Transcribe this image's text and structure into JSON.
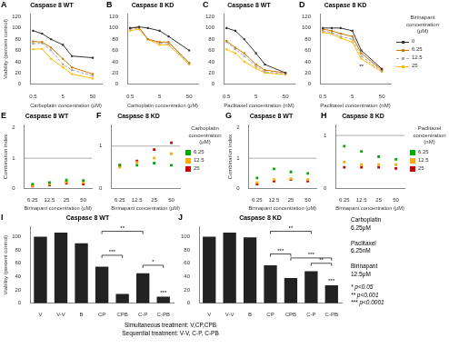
{
  "chart_data": [
    {
      "type": "line",
      "panel_label": "A",
      "title": "Caspase 8 WT",
      "xlabel": "Carboplatin concentration (μM)",
      "ylabel": "Viability (percent control)",
      "log": "x",
      "grid": false,
      "xlim": [
        0.4,
        100
      ],
      "xticks": [
        0.5,
        5,
        50
      ],
      "ylim": [
        0,
        125
      ],
      "yticks": [
        0,
        20,
        40,
        60,
        80,
        100,
        120
      ],
      "x": [
        0.5,
        1,
        2,
        5,
        10,
        50
      ],
      "series": [
        {
          "name": "0",
          "color": "#333333",
          "line_style": "solid",
          "marker": "square",
          "values": [
            95,
            90,
            80,
            70,
            50,
            47
          ]
        },
        {
          "name": "6.25",
          "color": "#cc7700",
          "line_style": "solid",
          "marker": "square",
          "values": [
            76,
            75,
            65,
            45,
            30,
            18
          ]
        },
        {
          "name": "12.5",
          "color": "#aaaaaa",
          "line_style": "dashed",
          "marker": "square",
          "values": [
            72,
            73,
            60,
            35,
            25,
            15
          ]
        },
        {
          "name": "25",
          "color": "#ffbb00",
          "line_style": "solid",
          "marker": "square",
          "values": [
            62,
            63,
            45,
            30,
            18,
            10
          ]
        }
      ]
    },
    {
      "type": "line",
      "panel_label": "B",
      "title": "Caspase 8 KD",
      "xlabel": "Carboplatin concentration (μM)",
      "log": "x",
      "grid": false,
      "xlim": [
        0.4,
        100
      ],
      "xticks": [
        0.5,
        5,
        50
      ],
      "ylim": [
        0,
        125
      ],
      "yticks": [
        0,
        20,
        40,
        60,
        80,
        100,
        120
      ],
      "x": [
        0.5,
        1,
        2,
        5,
        10,
        50
      ],
      "series": [
        {
          "name": "0",
          "color": "#333333",
          "line_style": "solid",
          "marker": "square",
          "values": [
            100,
            102,
            100,
            95,
            85,
            60
          ]
        },
        {
          "name": "6.25",
          "color": "#cc7700",
          "line_style": "solid",
          "marker": "square",
          "values": [
            100,
            101,
            80,
            75,
            75,
            38
          ]
        },
        {
          "name": "12.5",
          "color": "#aaaaaa",
          "line_style": "dashed",
          "marker": "square",
          "values": [
            98,
            100,
            80,
            73,
            72,
            37
          ]
        },
        {
          "name": "25",
          "color": "#ffbb00",
          "line_style": "solid",
          "marker": "square",
          "values": [
            95,
            98,
            80,
            70,
            70,
            35
          ]
        }
      ]
    },
    {
      "type": "line",
      "panel_label": "C",
      "title": "Caspase 8 WT",
      "xlabel": "Paclitaxel concentration (nM)",
      "log": "x",
      "grid": false,
      "xlim": [
        0.4,
        100
      ],
      "xticks": [
        0.5,
        5,
        50
      ],
      "ylim": [
        0,
        125
      ],
      "yticks": [
        0,
        20,
        40,
        60,
        80,
        100,
        120
      ],
      "x": [
        0.5,
        1,
        2,
        5,
        10,
        50
      ],
      "series": [
        {
          "name": "0",
          "color": "#333333",
          "line_style": "solid",
          "marker": "square",
          "values": [
            100,
            95,
            80,
            55,
            35,
            20
          ]
        },
        {
          "name": "6.25",
          "color": "#cc7700",
          "line_style": "solid",
          "marker": "square",
          "values": [
            77,
            65,
            55,
            35,
            25,
            20
          ]
        },
        {
          "name": "12.5",
          "color": "#aaaaaa",
          "line_style": "dashed",
          "marker": "square",
          "values": [
            75,
            62,
            50,
            32,
            22,
            18
          ]
        },
        {
          "name": "25",
          "color": "#ffbb00",
          "line_style": "solid",
          "marker": "square",
          "values": [
            62,
            55,
            40,
            28,
            20,
            17
          ]
        }
      ]
    },
    {
      "type": "line",
      "panel_label": "D",
      "title": "Caspase 8 KD",
      "xlabel": "Paclitaxel concentration (nM)",
      "log": "x",
      "grid": false,
      "legend": "right",
      "legend_title": "Birinapant\nconcentration\n(μM)",
      "xlim": [
        0.4,
        100
      ],
      "xticks": [
        0.5,
        5,
        50
      ],
      "ylim": [
        0,
        125
      ],
      "yticks": [
        0,
        20,
        40,
        60,
        80,
        100,
        120
      ],
      "x": [
        0.5,
        1,
        2,
        5,
        10,
        50
      ],
      "series": [
        {
          "name": "0",
          "color": "#333333",
          "line_style": "solid",
          "marker": "square",
          "values": [
            100,
            100,
            100,
            95,
            60,
            27
          ]
        },
        {
          "name": "6.25",
          "color": "#cc7700",
          "line_style": "solid",
          "marker": "square",
          "values": [
            98,
            95,
            90,
            85,
            55,
            25
          ]
        },
        {
          "name": "12.5",
          "color": "#aaaaaa",
          "line_style": "dashed",
          "marker": "square",
          "values": [
            95,
            92,
            85,
            80,
            50,
            23
          ]
        },
        {
          "name": "25",
          "color": "#ffbb00",
          "line_style": "solid",
          "marker": "square",
          "values": [
            92,
            90,
            82,
            75,
            45,
            22
          ]
        }
      ],
      "annotations": [
        {
          "text": "**",
          "x": 10,
          "y": 25
        }
      ]
    },
    {
      "type": "scatter",
      "panel_label": "E",
      "title": "Caspase 8 WT",
      "xlabel": "Birinapant concentration (μM)",
      "ylabel": "Combination index",
      "grid": false,
      "categories": [
        "6.25",
        "12.5",
        "25",
        "50"
      ],
      "ylim": [
        0,
        2.1
      ],
      "yticks": [
        0,
        1,
        2
      ],
      "reference_y": 1.0,
      "series": [
        {
          "name": "6.25",
          "color": "#00aa00",
          "marker": "square",
          "values": [
            0.15,
            0.2,
            0.28,
            0.27
          ]
        },
        {
          "name": "12.5",
          "color": "#ffaa00",
          "marker": "square",
          "values": [
            0.1,
            0.15,
            0.22,
            0.2
          ]
        },
        {
          "name": "25",
          "color": "#cc0000",
          "marker": "square",
          "values": [
            0.08,
            0.12,
            0.18,
            0.15
          ]
        }
      ]
    },
    {
      "type": "scatter",
      "panel_label": "F",
      "title": "Caspase 8 KD",
      "xlabel": "Birinapant concentration (μM)",
      "grid": false,
      "legend": "right",
      "legend_title": "Carboplatin\nconcentration\n(μM)",
      "categories": [
        "6.25",
        "12.5",
        "25",
        "50"
      ],
      "ylim": [
        0,
        1.5
      ],
      "yticks": [
        0,
        1
      ],
      "reference_y": 1.0,
      "series": [
        {
          "name": "6.25",
          "color": "#00aa00",
          "marker": "square",
          "values": [
            0.55,
            0.55,
            0.6,
            0.55
          ]
        },
        {
          "name": "12.5",
          "color": "#ffaa00",
          "marker": "square",
          "values": [
            0.5,
            0.62,
            0.72,
            0.82
          ]
        },
        {
          "name": "25",
          "color": "#cc0000",
          "marker": "square",
          "values": [
            0.55,
            0.65,
            0.92,
            1.08
          ]
        }
      ]
    },
    {
      "type": "scatter",
      "panel_label": "G",
      "title": "Caspase 8 WT",
      "xlabel": "Birinapant concentration (μM)",
      "ylabel": "Combination index",
      "grid": false,
      "categories": [
        "6.25",
        "12.5",
        "25",
        "50"
      ],
      "ylim": [
        0,
        2.1
      ],
      "yticks": [
        0,
        1,
        2
      ],
      "reference_y": 1.0,
      "series": [
        {
          "name": "6.25",
          "color": "#00aa00",
          "marker": "square",
          "values": [
            0.35,
            0.65,
            0.55,
            0.5
          ]
        },
        {
          "name": "12.5",
          "color": "#ffaa00",
          "marker": "square",
          "values": [
            0.2,
            0.3,
            0.32,
            0.3
          ]
        },
        {
          "name": "25",
          "color": "#cc0000",
          "marker": "square",
          "values": [
            0.15,
            0.25,
            0.3,
            0.25
          ]
        }
      ]
    },
    {
      "type": "scatter",
      "panel_label": "H",
      "title": "Caspase 8 KD",
      "xlabel": "Birinapant concentration (μM)",
      "grid": false,
      "legend": "right",
      "legend_title": "Paclitaxel\nconcentration\n(nM)",
      "categories": [
        "6.25",
        "12.5",
        "25",
        "50"
      ],
      "ylim": [
        0,
        1.2
      ],
      "yticks": [
        0,
        1
      ],
      "reference_y": 1.0,
      "series": [
        {
          "name": "6.25",
          "color": "#00aa00",
          "marker": "square",
          "values": [
            0.8,
            0.7,
            0.6,
            0.55
          ]
        },
        {
          "name": "12.5",
          "color": "#ffaa00",
          "marker": "square",
          "values": [
            0.5,
            0.45,
            0.45,
            0.45
          ]
        },
        {
          "name": "25",
          "color": "#cc0000",
          "marker": "square",
          "values": [
            0.4,
            0.4,
            0.4,
            0.38
          ]
        }
      ]
    },
    {
      "type": "bar",
      "panel_label": "I",
      "title": "Caspase 8 WT",
      "ylabel": "Viability (percent control)",
      "grid": false,
      "categories": [
        "V",
        "V-V",
        "B",
        "CP",
        "CPB",
        "C-P",
        "C-PB"
      ],
      "values": [
        100,
        106,
        90,
        55,
        14,
        45,
        10
      ],
      "color": "#222222",
      "ylim": [
        0,
        115
      ],
      "yticks": [
        0,
        20,
        40,
        60,
        80,
        100
      ],
      "brackets": [
        {
          "from": "CP",
          "to": "C-P",
          "y": 108,
          "text": "**"
        },
        {
          "from": "C-P",
          "to": "C-PB",
          "y": 57,
          "text": "*"
        },
        {
          "from": "CP",
          "to": "CPB",
          "y": 72,
          "text": "***"
        }
      ],
      "annotations": [
        {
          "text": "***",
          "x": "C-PB",
          "y": 11
        }
      ]
    },
    {
      "type": "bar",
      "panel_label": "J",
      "title": "Caspase 8 KD",
      "grid": false,
      "categories": [
        "V",
        "V-V",
        "B",
        "CP",
        "CPB",
        "C-P",
        "C-PB"
      ],
      "values": [
        100,
        106,
        99,
        57,
        38,
        48,
        27
      ],
      "color": "#222222",
      "ylim": [
        0,
        115
      ],
      "yticks": [
        0,
        20,
        40,
        60,
        80,
        100
      ],
      "brackets": [
        {
          "from": "CP",
          "to": "C-P",
          "y": 108,
          "text": "**"
        },
        {
          "from": "C-P",
          "to": "C-PB",
          "y": 60,
          "text": "**"
        },
        {
          "from": "CPB",
          "to": "C-PB",
          "y": 68,
          "text": "***"
        },
        {
          "from": "CP",
          "to": "CPB",
          "y": 74,
          "text": "***"
        }
      ],
      "annotations": [
        {
          "text": "***",
          "x": "C-PB",
          "y": 28
        }
      ]
    }
  ],
  "annotations": [
    "Carboplatin\n6.25μM\n\nPaclitaxel\n6.25nM\n\nBirinapant\n12.5μM",
    "* p<0.05\n** p<0.001\n*** p<0.0001"
  ],
  "caption": "Simultaneous treatment: V,CP,CPB\nSequential treatment: V-V, C-P, C-PB"
}
